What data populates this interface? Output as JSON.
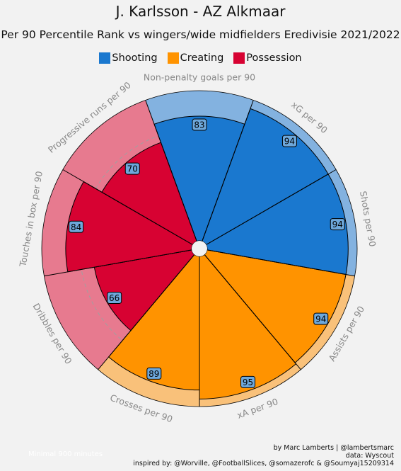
{
  "header": {
    "title": "J. Karlsson - AZ Alkmaar",
    "subtitle": "Per 90 Percentile Rank vs wingers/wide midfielders Eredivisie 2021/2022"
  },
  "chart_data": {
    "type": "pizza",
    "scale": [
      0,
      100
    ],
    "categories_legend": [
      {
        "name": "Shooting",
        "color": "#1a78cf"
      },
      {
        "name": "Creating",
        "color": "#ff9300"
      },
      {
        "name": "Possession",
        "color": "#d70232"
      }
    ],
    "slices": [
      {
        "label": "Non-penalty goals per 90",
        "value": 83,
        "group": "Shooting"
      },
      {
        "label": "xG per 90",
        "value": 94,
        "group": "Shooting"
      },
      {
        "label": "Shots per 90",
        "value": 94,
        "group": "Shooting"
      },
      {
        "label": "Assists per 90",
        "value": 94,
        "group": "Creating"
      },
      {
        "label": "xA per 90",
        "value": 95,
        "group": "Creating"
      },
      {
        "label": "Crosses per 90",
        "value": 89,
        "group": "Creating"
      },
      {
        "label": "Dribbles per 90",
        "value": 66,
        "group": "Possession"
      },
      {
        "label": "Touches in box per 90",
        "value": 84,
        "group": "Possession"
      },
      {
        "label": "Progressive runs per 90",
        "value": 70,
        "group": "Possession"
      }
    ],
    "colors": {
      "Shooting": {
        "fill": "#1a78cf",
        "bg": "#83b2e0"
      },
      "Creating": {
        "fill": "#ff9300",
        "bg": "#f9c17a"
      },
      "Possession": {
        "fill": "#d70232",
        "bg": "#e77a8f"
      },
      "value_box": "#6ea8db",
      "param_text": "#888888"
    }
  },
  "footer": {
    "note": "Minimal 900 minutes",
    "credit_line1": "by Marc Lamberts | @lambertsmarc",
    "credit_line2": "data: Wyscout",
    "credit_line3": "inspired by: @Worville, @FootballSlices, @somazerofc & @Soumyaj15209314"
  }
}
